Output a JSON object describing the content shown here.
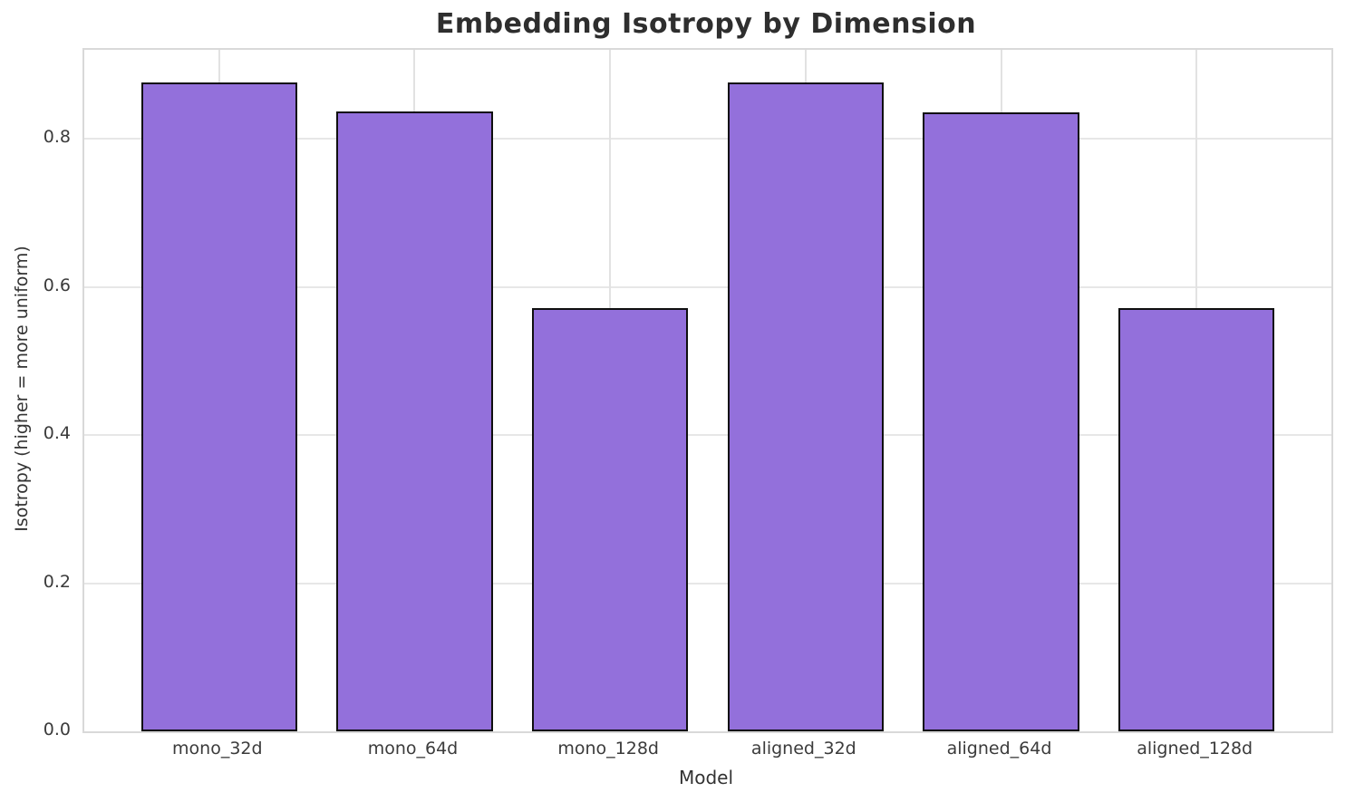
{
  "chart_data": {
    "type": "bar",
    "title": "Embedding Isotropy by Dimension",
    "xlabel": "Model",
    "ylabel": "Isotropy (higher = more uniform)",
    "categories": [
      "mono_32d",
      "mono_64d",
      "mono_128d",
      "aligned_32d",
      "aligned_64d",
      "aligned_128d"
    ],
    "values": [
      0.876,
      0.837,
      0.571,
      0.876,
      0.836,
      0.571
    ],
    "yticks": [
      0.0,
      0.2,
      0.4,
      0.6,
      0.8
    ],
    "ylim": [
      0,
      0.92
    ],
    "grid": true,
    "legend": "none",
    "bar_color": "#9370DB",
    "bar_edge_color": "#0f0f0f",
    "grid_color": "#e7e7e7",
    "spine_color": "#d9d9d9",
    "background_color": "#ffffff",
    "title_color": "#2e2e2e",
    "tick_label_color": "#3b3b3b"
  }
}
